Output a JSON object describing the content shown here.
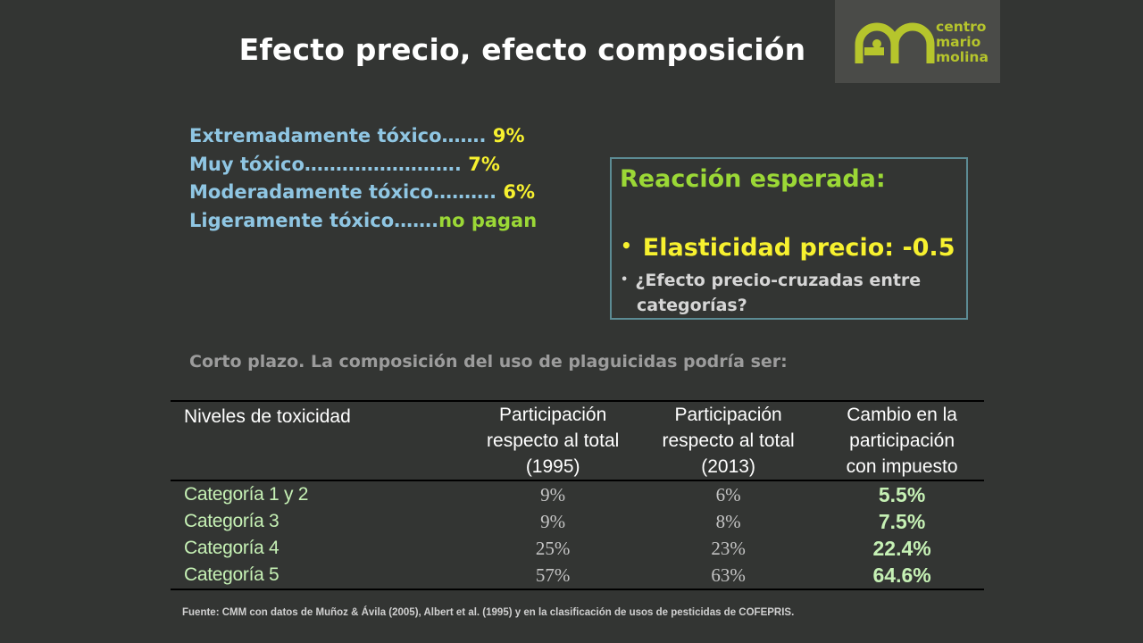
{
  "slide": {
    "title": "Efecto precio, efecto composición"
  },
  "logo": {
    "line1": "centro",
    "line2": "mario",
    "line3": "molina",
    "color": "#b6c52c"
  },
  "toxicity_rates": [
    {
      "label": "Extremadamente tóxico……. ",
      "rate": "9%"
    },
    {
      "label": "Muy tóxico…………………….   ",
      "rate": "7%"
    },
    {
      "label": "Moderadamente tóxico………. ",
      "rate": "6%"
    },
    {
      "label": "Ligeramente tóxico…….",
      "rate": "no pagan"
    }
  ],
  "reaction": {
    "title": "Reacción esperada:",
    "bullet1": "Elasticidad precio: -0.5",
    "bullet2_line1": "¿Efecto precio-cruzadas entre",
    "bullet2_line2": "categorías?"
  },
  "intro": {
    "plain": "Corto plazo.  La ",
    "bold": "composición del uso de plaguicidas podría ser:"
  },
  "table": {
    "headers": [
      [
        "Niveles de toxicidad"
      ],
      [
        "Participación",
        "respecto al total",
        "(1995)"
      ],
      [
        "Participación",
        "respecto al total",
        "(2013)"
      ],
      [
        "Cambio en la",
        "participación",
        "con impuesto"
      ]
    ],
    "rows": [
      {
        "category": "Categoría 1 y 2",
        "share_1995": "9%",
        "share_2013": "6%",
        "change_with_tax": "5.5%"
      },
      {
        "category": "Categoría  3",
        "share_1995": "9%",
        "share_2013": "8%",
        "change_with_tax": "7.5%"
      },
      {
        "category": "Categoría  4",
        "share_1995": "25%",
        "share_2013": "23%",
        "change_with_tax": "22.4%"
      },
      {
        "category": "Categoría  5",
        "share_1995": "57%",
        "share_2013": "63%",
        "change_with_tax": "64.6%"
      }
    ]
  },
  "source": "Fuente: CMM con datos de Muñoz & Ávila (2005), Albert et al. (1995) y en la clasificación de usos de pesticidas de COFEPRIS.",
  "colors": {
    "background": "#333533",
    "light_blue": "#8fc6e3",
    "yellow": "#f7f12f",
    "green": "#9bd836",
    "mint": "#c6f1b5"
  }
}
